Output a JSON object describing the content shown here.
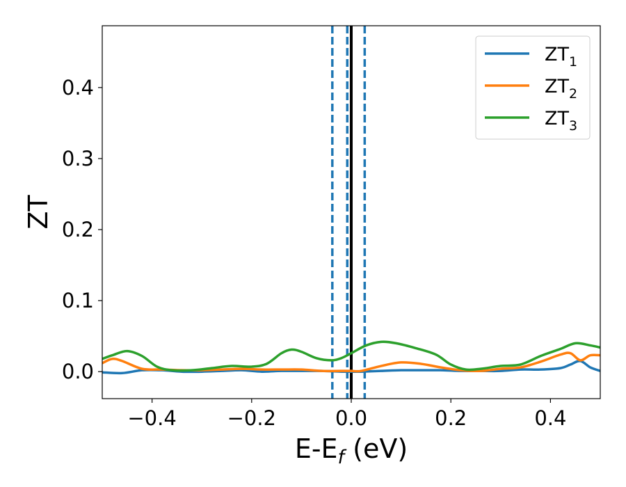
{
  "chart_data": {
    "type": "line",
    "xlabel": "E-E",
    "xlabel_subscript": "f",
    "xlabel_unit": " (eV)",
    "ylabel": "ZT",
    "xlim": [
      -0.5,
      0.5
    ],
    "ylim": [
      -0.038,
      0.487
    ],
    "xticks": [
      -0.4,
      -0.2,
      0.0,
      0.2,
      0.4
    ],
    "xtick_labels": [
      "−0.4",
      "−0.2",
      "0.0",
      "0.2",
      "0.4"
    ],
    "yticks": [
      0.0,
      0.1,
      0.2,
      0.3,
      0.4
    ],
    "ytick_labels": [
      "0.0",
      "0.1",
      "0.2",
      "0.3",
      "0.4"
    ],
    "grid": false,
    "legend_position": "top-right",
    "vertical_lines": [
      {
        "x": -0.038,
        "color": "#1f77b4",
        "style": "dashed"
      },
      {
        "x": -0.008,
        "color": "#1f77b4",
        "style": "dashed"
      },
      {
        "x": 0.027,
        "color": "#1f77b4",
        "style": "dashed"
      },
      {
        "x": 0.0,
        "color": "#000000",
        "style": "solid"
      }
    ],
    "series": [
      {
        "name": "ZT",
        "subscript": "1",
        "color": "#1f77b4",
        "x": [
          -0.5,
          -0.46,
          -0.42,
          -0.38,
          -0.34,
          -0.3,
          -0.26,
          -0.22,
          -0.18,
          -0.14,
          -0.1,
          -0.06,
          -0.02,
          0.0,
          0.02,
          0.06,
          0.1,
          0.14,
          0.18,
          0.22,
          0.26,
          0.3,
          0.34,
          0.38,
          0.42,
          0.44,
          0.46,
          0.48,
          0.5
        ],
        "y": [
          -0.001,
          -0.002,
          0.002,
          0.002,
          0.0,
          0.0,
          0.001,
          0.002,
          0.0,
          0.001,
          0.001,
          0.001,
          0.0,
          0.0,
          0.0,
          0.001,
          0.002,
          0.002,
          0.002,
          0.001,
          0.001,
          0.001,
          0.003,
          0.003,
          0.005,
          0.01,
          0.015,
          0.006,
          0.001
        ]
      },
      {
        "name": "ZT",
        "subscript": "2",
        "color": "#ff7f0e",
        "x": [
          -0.5,
          -0.48,
          -0.46,
          -0.42,
          -0.38,
          -0.34,
          -0.3,
          -0.26,
          -0.22,
          -0.18,
          -0.14,
          -0.1,
          -0.06,
          -0.02,
          0.0,
          0.02,
          0.06,
          0.1,
          0.14,
          0.18,
          0.22,
          0.26,
          0.3,
          0.34,
          0.38,
          0.42,
          0.44,
          0.46,
          0.48,
          0.5
        ],
        "y": [
          0.012,
          0.018,
          0.015,
          0.004,
          0.003,
          0.002,
          0.002,
          0.003,
          0.004,
          0.003,
          0.003,
          0.003,
          0.001,
          0.001,
          0.001,
          0.001,
          0.008,
          0.013,
          0.011,
          0.006,
          0.002,
          0.001,
          0.004,
          0.006,
          0.014,
          0.024,
          0.026,
          0.016,
          0.023,
          0.023
        ]
      },
      {
        "name": "ZT",
        "subscript": "3",
        "color": "#2ca02c",
        "x": [
          -0.5,
          -0.48,
          -0.45,
          -0.42,
          -0.39,
          -0.36,
          -0.32,
          -0.28,
          -0.24,
          -0.2,
          -0.17,
          -0.14,
          -0.12,
          -0.1,
          -0.07,
          -0.04,
          -0.02,
          0.0,
          0.03,
          0.06,
          0.09,
          0.13,
          0.17,
          0.2,
          0.23,
          0.26,
          0.3,
          0.34,
          0.38,
          0.42,
          0.45,
          0.48,
          0.5
        ],
        "y": [
          0.018,
          0.023,
          0.029,
          0.022,
          0.007,
          0.002,
          0.002,
          0.005,
          0.008,
          0.007,
          0.011,
          0.026,
          0.031,
          0.028,
          0.019,
          0.016,
          0.019,
          0.026,
          0.037,
          0.042,
          0.04,
          0.033,
          0.024,
          0.01,
          0.003,
          0.004,
          0.008,
          0.01,
          0.022,
          0.032,
          0.04,
          0.037,
          0.034
        ]
      }
    ]
  }
}
